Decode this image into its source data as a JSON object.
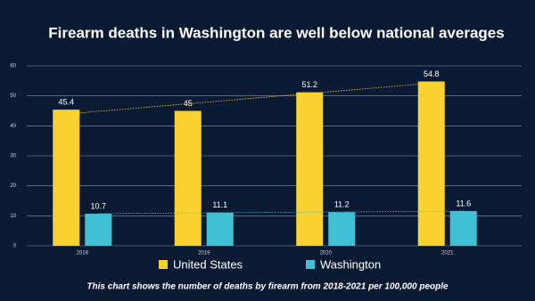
{
  "chart_data": {
    "type": "bar",
    "title": "Firearm deaths in Washington are well below national averages",
    "subtitle": "This chart shows the number of deaths by firearm from 2018-2021 per 100,000 people",
    "categories": [
      "2018",
      "2019",
      "2020",
      "2021"
    ],
    "series": [
      {
        "name": "United States",
        "color": "#f9d230",
        "values": [
          45.4,
          45,
          51.2,
          54.8
        ]
      },
      {
        "name": "Washington",
        "color": "#3fc0d5",
        "values": [
          10.7,
          11.1,
          11.2,
          11.6
        ]
      }
    ],
    "ylim": [
      0,
      60
    ],
    "yticks": [
      0,
      10,
      20,
      30,
      40,
      50,
      60
    ],
    "grid": true,
    "trendline": true
  }
}
